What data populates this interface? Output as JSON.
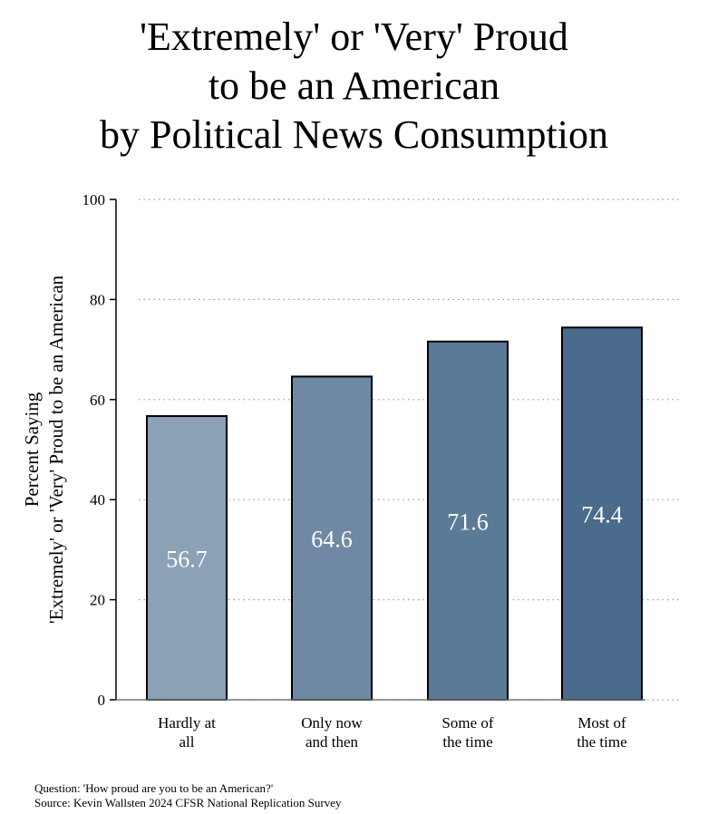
{
  "title_lines": [
    "'Extremely' or 'Very' Proud",
    "to be an American",
    "by Political News Consumption"
  ],
  "chart_data": {
    "type": "bar",
    "title": "'Extremely' or 'Very' Proud to be an American by Political News Consumption",
    "categories": [
      [
        "Hardly at",
        "all"
      ],
      [
        "Only now",
        "and then"
      ],
      [
        "Some of",
        "the time"
      ],
      [
        "Most of",
        "the time"
      ]
    ],
    "values": [
      56.7,
      64.6,
      71.6,
      74.4
    ],
    "value_labels": [
      "56.7",
      "64.6",
      "71.6",
      "74.4"
    ],
    "ylabel": [
      "Percent Saying",
      "'Extremely' or 'Very' Proud to be an American"
    ],
    "xlabel": "",
    "ylim": [
      0,
      100
    ],
    "yticks": [
      0,
      20,
      40,
      60,
      80,
      100
    ],
    "grid": true,
    "legend": "none",
    "bar_colors": [
      "#8ba1b5",
      "#6f89a4",
      "#5b7a97",
      "#4a6b8b"
    ]
  },
  "captions": {
    "question": "Question: 'How proud are you to be an American?'",
    "source": "Source: Kevin Wallsten 2024 CFSR National Replication Survey"
  }
}
